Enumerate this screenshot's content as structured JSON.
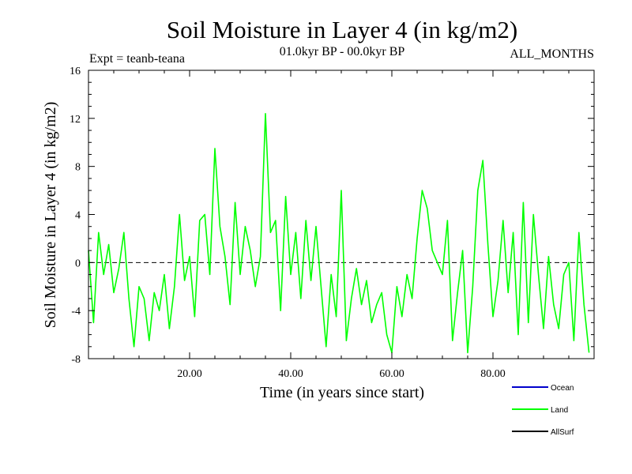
{
  "chart_data": {
    "type": "line",
    "title": "Soil Moisture in Layer 4 (in kg/m2)",
    "subtitle": "01.0kyr BP - 00.0kyr BP",
    "left_note": "Expt = teanb-teana",
    "right_note": "ALL_MONTHS",
    "xlabel": "Time (in years since start)",
    "ylabel": "Soil Moisture in Layer 4 (in kg/m2)",
    "xlim": [
      0,
      100
    ],
    "ylim": [
      -8,
      16
    ],
    "x_ticks": [
      20,
      40,
      60,
      80
    ],
    "x_tick_labels": [
      "20.00",
      "40.00",
      "60.00",
      "80.00"
    ],
    "y_ticks": [
      -8,
      -4,
      0,
      4,
      8,
      12,
      16
    ],
    "y_tick_labels": [
      "-8",
      "-4",
      "0",
      "4",
      "8",
      "12",
      "16"
    ],
    "zero_line": 0,
    "series": [
      {
        "name": "Ocean",
        "color": "#0000cc",
        "x": [],
        "values": []
      },
      {
        "name": "Land",
        "color": "#00ff00",
        "x": [
          0,
          1,
          2,
          3,
          4,
          5,
          6,
          7,
          8,
          9,
          10,
          11,
          12,
          13,
          14,
          15,
          16,
          17,
          18,
          19,
          20,
          21,
          22,
          23,
          24,
          25,
          26,
          27,
          28,
          29,
          30,
          31,
          32,
          33,
          34,
          35,
          36,
          37,
          38,
          39,
          40,
          41,
          42,
          43,
          44,
          45,
          46,
          47,
          48,
          49,
          50,
          51,
          52,
          53,
          54,
          55,
          56,
          57,
          58,
          59,
          60,
          61,
          62,
          63,
          64,
          65,
          66,
          67,
          68,
          69,
          70,
          71,
          72,
          73,
          74,
          75,
          76,
          77,
          78,
          79,
          80,
          81,
          82,
          83,
          84,
          85,
          86,
          87,
          88,
          89,
          90,
          91,
          92,
          93,
          94,
          95,
          96,
          97,
          98,
          99
        ],
        "values": [
          1.0,
          -5.0,
          2.5,
          -1.0,
          1.5,
          -2.5,
          -0.5,
          2.5,
          -3.0,
          -7.0,
          -2.0,
          -3.0,
          -6.5,
          -2.5,
          -4.0,
          -1.0,
          -5.5,
          -2.0,
          4.0,
          -1.5,
          0.5,
          -4.5,
          3.5,
          4.0,
          -1.0,
          9.5,
          3.0,
          0.5,
          -3.5,
          5.0,
          -1.0,
          3.0,
          1.0,
          -2.0,
          0.5,
          12.4,
          2.5,
          3.5,
          -4.0,
          5.5,
          -1.0,
          2.5,
          -3.0,
          3.5,
          -1.5,
          3.0,
          -2.0,
          -7.0,
          -1.0,
          -4.5,
          6.0,
          -6.5,
          -3.0,
          -0.5,
          -3.5,
          -1.5,
          -5.0,
          -3.5,
          -2.5,
          -6.0,
          -7.5,
          -2.0,
          -4.5,
          -1.0,
          -3.0,
          2.0,
          6.0,
          4.5,
          1.0,
          0.0,
          -1.0,
          3.5,
          -6.5,
          -2.5,
          1.0,
          -7.5,
          -2.0,
          6.0,
          8.5,
          1.5,
          -4.5,
          -1.5,
          3.5,
          -2.5,
          2.5,
          -6.0,
          5.0,
          -5.0,
          4.0,
          -1.0,
          -5.5,
          0.5,
          -3.5,
          -5.5,
          -1.0,
          0.0,
          -6.5,
          2.5,
          -3.5,
          -7.5
        ]
      },
      {
        "name": "AllSurf",
        "color": "#000000",
        "x": [],
        "values": []
      }
    ],
    "legend_position": "bottom-right"
  }
}
